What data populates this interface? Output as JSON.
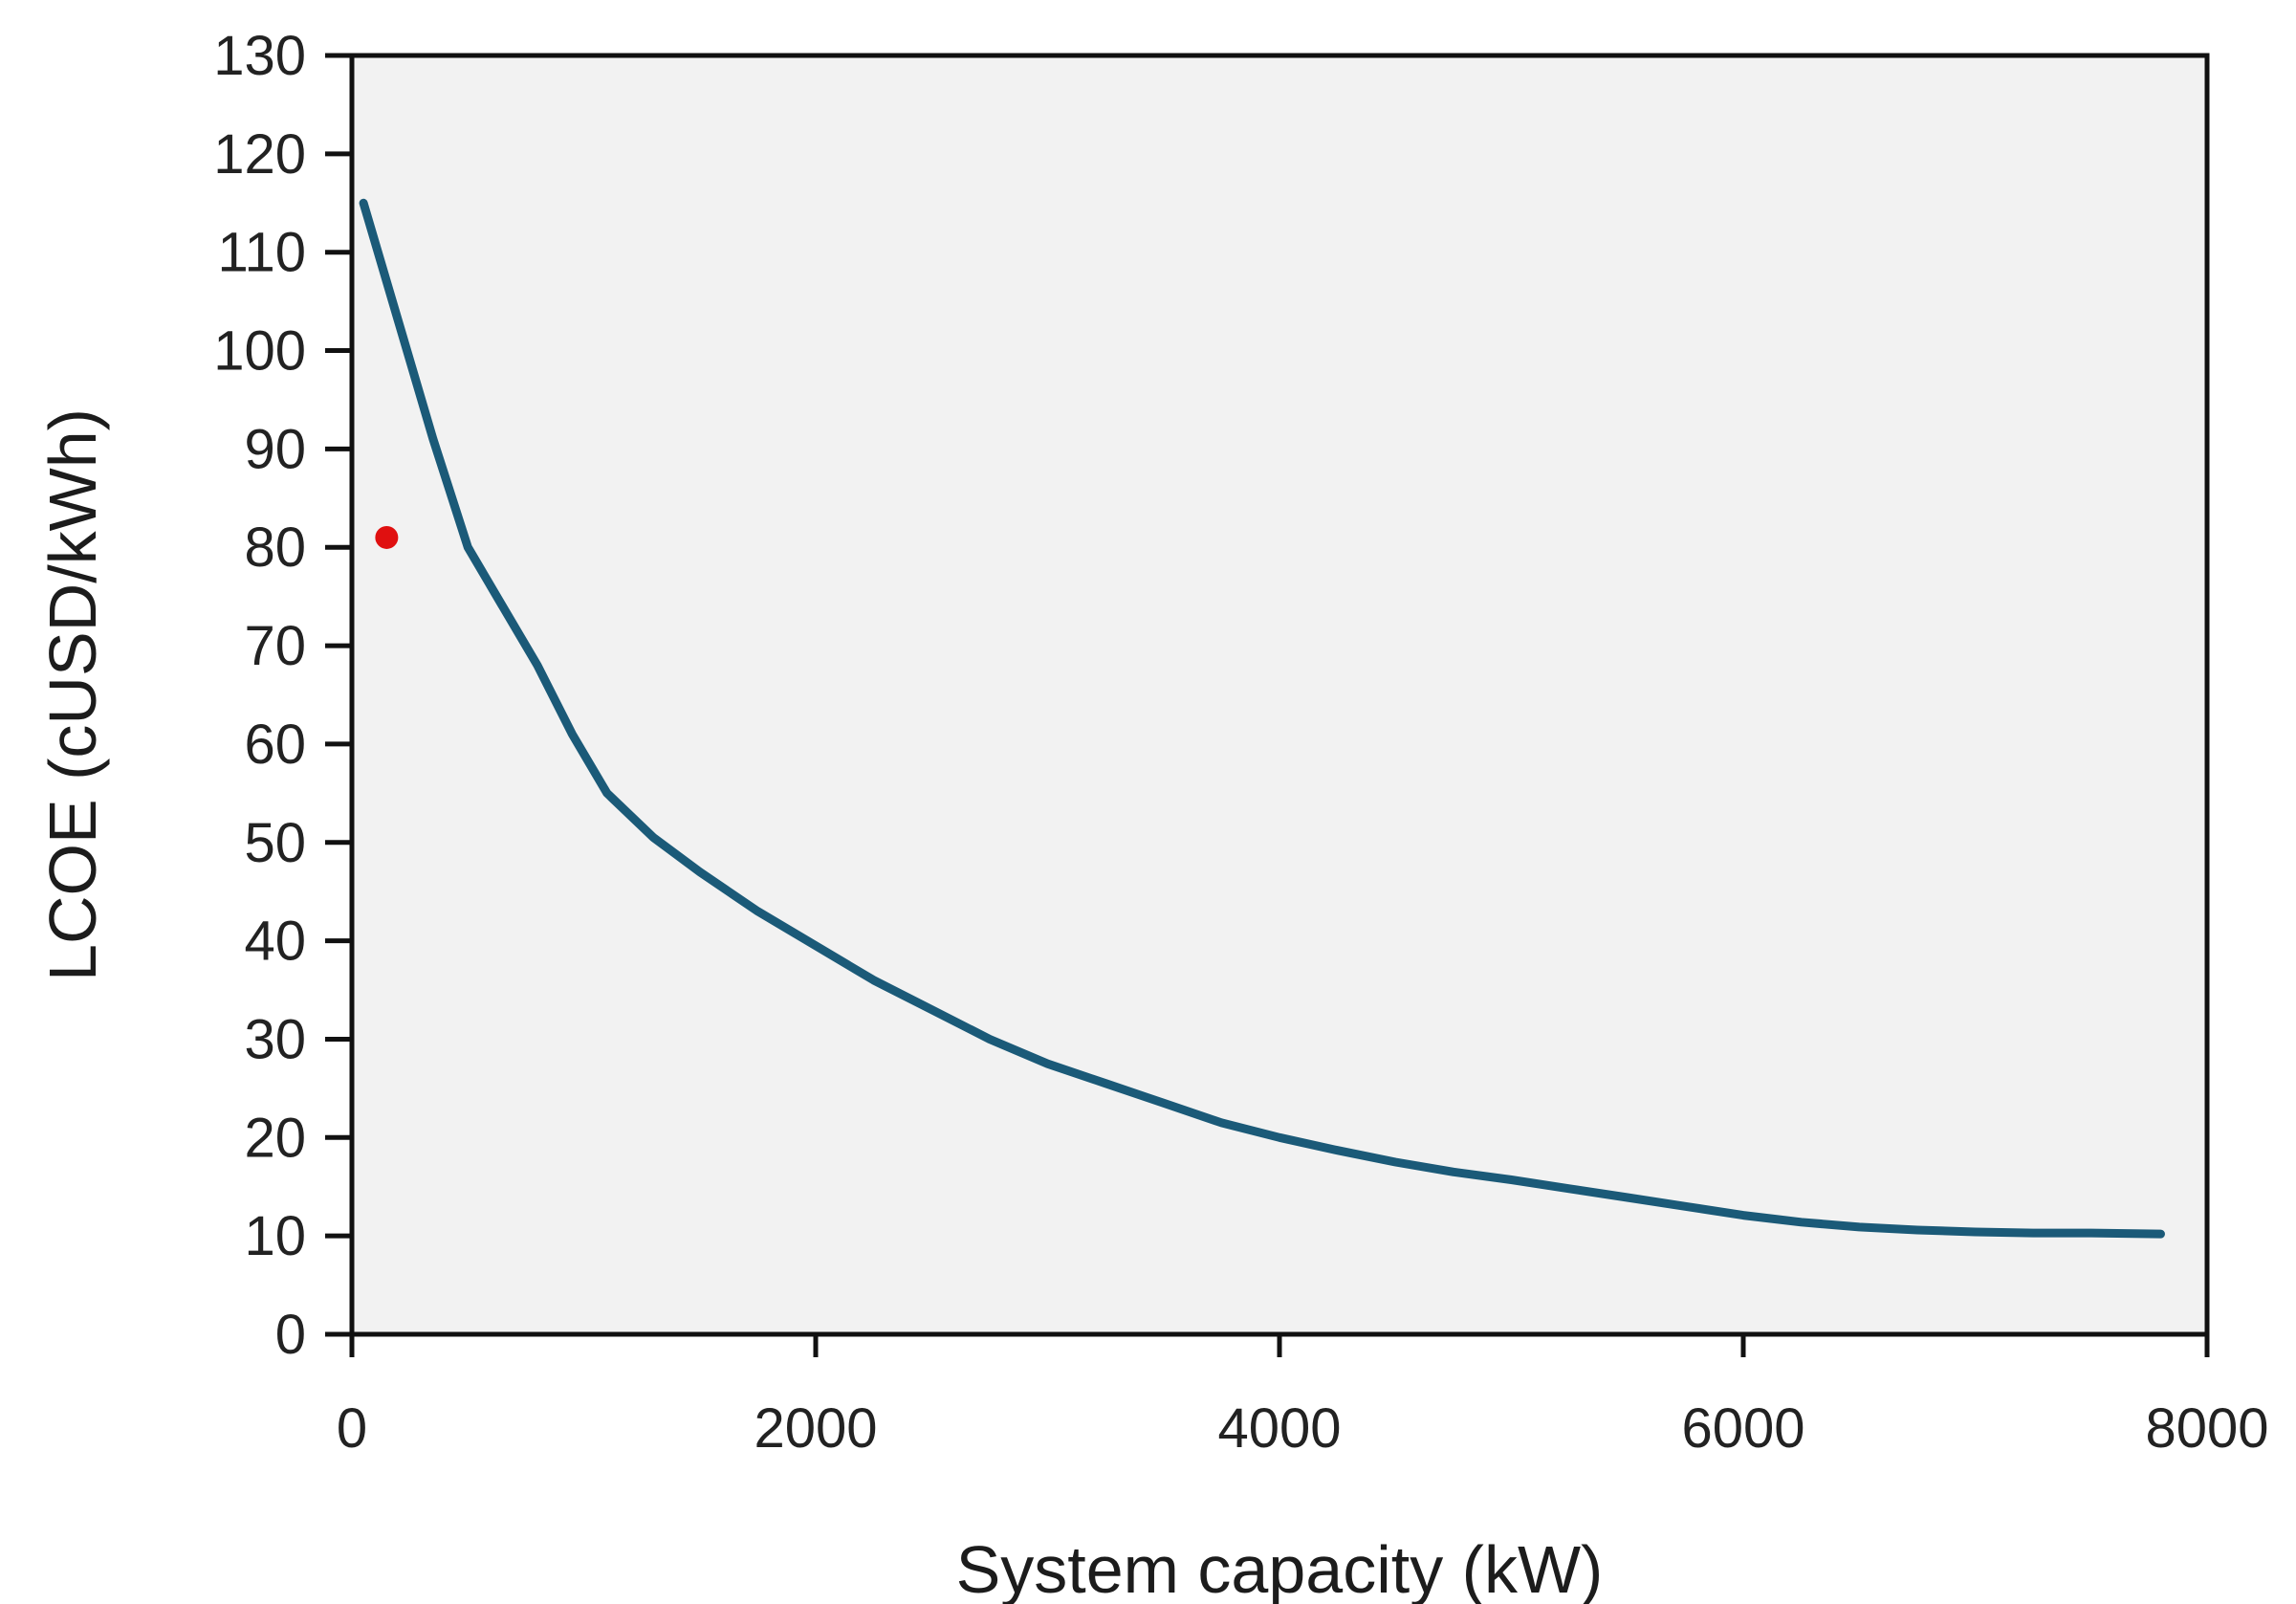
{
  "chart_data": {
    "type": "line",
    "title": "",
    "xlabel": "System capacity (kW)",
    "ylabel": "LCOE  (cUSD/kWh)",
    "xlim": [
      0,
      8000
    ],
    "ylim": [
      0,
      130
    ],
    "xticks": [
      0,
      2000,
      4000,
      6000,
      8000
    ],
    "yticks": [
      0,
      10,
      20,
      30,
      40,
      50,
      60,
      70,
      80,
      90,
      100,
      110,
      120,
      130
    ],
    "grid": false,
    "legend": "none",
    "plot_background": "#f2f2f2",
    "series": [
      {
        "color": "#1b5a78",
        "x": [
          50,
          200,
          350,
          500,
          650,
          800,
          950,
          1100,
          1300,
          1500,
          1750,
          2000,
          2250,
          2500,
          2750,
          3000,
          3250,
          3500,
          3750,
          4000,
          4250,
          4500,
          4750,
          5000,
          5250,
          5500,
          5750,
          6000,
          6250,
          6500,
          6750,
          7000,
          7250,
          7500,
          7800
        ],
        "y": [
          115,
          103,
          91,
          80,
          74,
          68,
          61,
          55,
          50.5,
          47,
          43,
          39.5,
          36,
          33,
          30,
          27.5,
          25.5,
          23.5,
          21.5,
          20,
          18.7,
          17.5,
          16.5,
          15.7,
          14.8,
          13.9,
          13,
          12.1,
          11.4,
          10.9,
          10.6,
          10.4,
          10.3,
          10.3,
          10.2
        ]
      }
    ],
    "points": [
      {
        "x": 150,
        "y": 81,
        "color": "#e01010"
      }
    ]
  }
}
